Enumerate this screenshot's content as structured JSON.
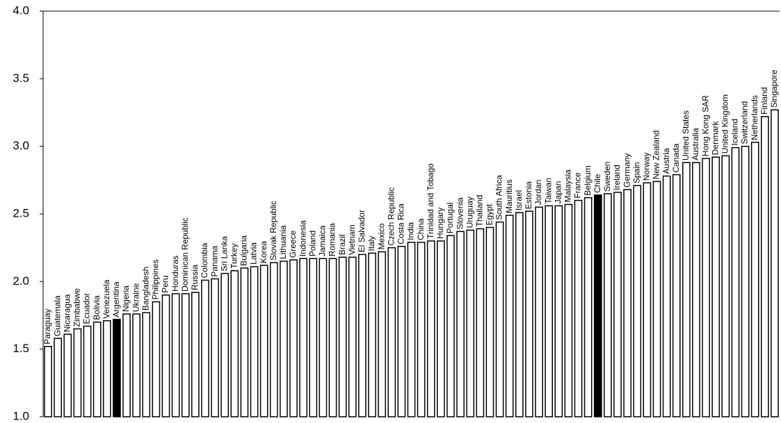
{
  "chart_data": {
    "type": "bar",
    "categories": [
      "Paraguay",
      "Guatemala",
      "Nicaragua",
      "Zimbabwe",
      "Ecuador",
      "Bolivia",
      "Venezuela",
      "Argentina",
      "Nigeria",
      "Ukraine",
      "Bangladesh",
      "Philippines",
      "Peru",
      "Honduras",
      "Dominican Republic",
      "Russia",
      "Colombia",
      "Panama",
      "Sri Lanka",
      "Turkey",
      "Bulgaria",
      "Latvia",
      "Korea",
      "Slovak Republic",
      "Lithuania",
      "Greece",
      "Indonesia",
      "Poland",
      "Jamaica",
      "Romania",
      "Brazil",
      "Vietnam",
      "El Salvador",
      "Italy",
      "Mexico",
      "Czech Republic",
      "Costa Rica",
      "India",
      "China",
      "Trinidad and Tobago",
      "Hungary",
      "Portugal",
      "Slovenia",
      "Uruguay",
      "Thailand",
      "Egypt",
      "South Africa",
      "Mauritius",
      "Israel",
      "Estonia",
      "Jordan",
      "Taiwan",
      "Japan",
      "Malaysia",
      "France",
      "Belgium",
      "Chile",
      "Sweden",
      "Ireland",
      "Germany",
      "Spain",
      "Norway",
      "New Zealand",
      "Austria",
      "Canada",
      "United States",
      "Australia",
      "Hong Kong SAR",
      "Denmark",
      "United Kingdom",
      "Iceland",
      "Switzerland",
      "Netherlands",
      "Finland",
      "Singapore"
    ],
    "values": [
      1.52,
      1.58,
      1.61,
      1.65,
      1.67,
      1.7,
      1.71,
      1.72,
      1.76,
      1.76,
      1.77,
      1.85,
      1.9,
      1.91,
      1.91,
      1.92,
      2.01,
      2.02,
      2.06,
      2.08,
      2.1,
      2.11,
      2.12,
      2.14,
      2.15,
      2.16,
      2.17,
      2.17,
      2.17,
      2.17,
      2.18,
      2.18,
      2.2,
      2.21,
      2.22,
      2.25,
      2.26,
      2.29,
      2.29,
      2.3,
      2.3,
      2.34,
      2.37,
      2.38,
      2.39,
      2.4,
      2.44,
      2.49,
      2.51,
      2.52,
      2.55,
      2.56,
      2.56,
      2.57,
      2.6,
      2.62,
      2.64,
      2.65,
      2.66,
      2.68,
      2.71,
      2.73,
      2.74,
      2.78,
      2.79,
      2.88,
      2.88,
      2.91,
      2.92,
      2.93,
      2.99,
      3.0,
      3.03,
      3.22,
      3.27
    ],
    "color": "#ffffff",
    "highlight": {
      "categories": [
        "Argentina",
        "Chile"
      ],
      "color": "#000000"
    },
    "ylim": [
      1.0,
      4.0
    ],
    "yticks": [
      {
        "value": 1.0,
        "label": "1.0"
      },
      1.5,
      {
        "value": 2.0,
        "label": "2.0"
      },
      2.5,
      {
        "value": 3.0,
        "label": "3.0"
      },
      3.5,
      {
        "value": 4.0,
        "label": "4.0"
      }
    ],
    "grid": false
  }
}
